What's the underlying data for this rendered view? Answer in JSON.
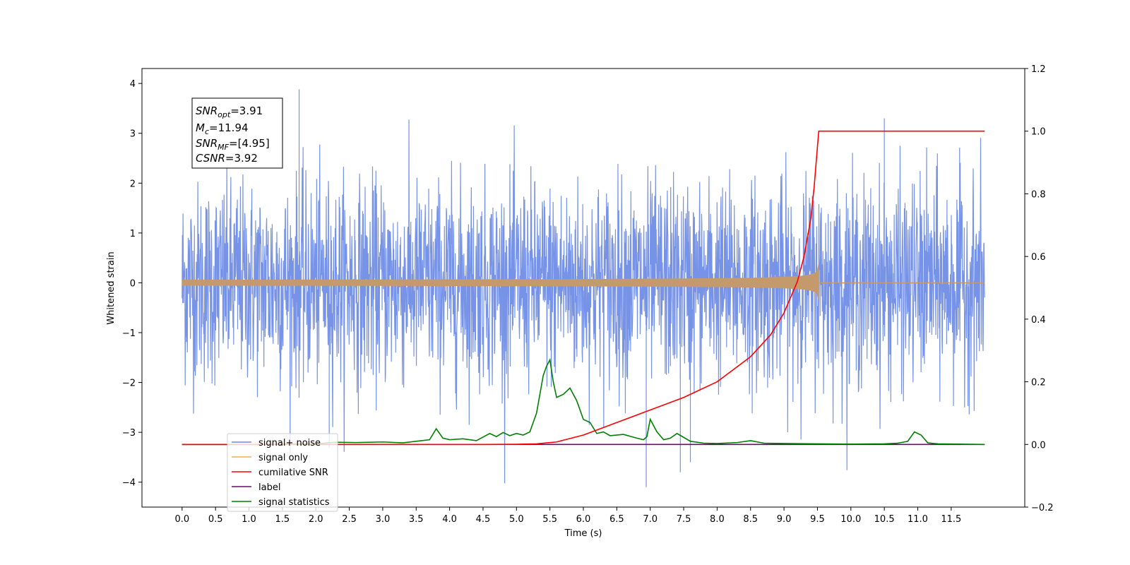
{
  "chart_data": {
    "type": "line",
    "xlabel": "Time (s)",
    "ylabel": "Whitened strain",
    "xlim": [
      -0.6,
      12.6
    ],
    "ylim": [
      -4.5,
      4.3
    ],
    "y2lim": [
      -0.2,
      1.2
    ],
    "x_ticks": [
      "0.0",
      "0.5",
      "1.0",
      "1.5",
      "2.0",
      "2.5",
      "3.0",
      "3.5",
      "4.0",
      "4.5",
      "5.0",
      "5.5",
      "6.0",
      "6.5",
      "7.0",
      "7.5",
      "8.0",
      "8.5",
      "9.0",
      "9.5",
      "10.0",
      "10.5",
      "11.0",
      "11.5"
    ],
    "y_ticks": [
      "4",
      "3",
      "2",
      "1",
      "0",
      "−1",
      "−2",
      "−3",
      "−4"
    ],
    "y2_ticks": [
      "1.2",
      "1.0",
      "0.8",
      "0.6",
      "0.4",
      "0.2",
      "0.0",
      "−0.2"
    ],
    "annotation": {
      "snr_opt_base": "SNR",
      "snr_opt_sub": "opt",
      "snr_opt_value": "=3.91",
      "mc_base": "M",
      "mc_sub": "c",
      "mc_value": "=11.94",
      "snr_mf_base": "SNR",
      "snr_mf_sub": "MF",
      "snr_mf_value": "=[4.95]",
      "csnr_base": "CSNR",
      "csnr_value": "=3.92"
    },
    "legend_position": "lower-left",
    "series": [
      {
        "name": "signal+ noise",
        "axis": "left",
        "color": "#6b8ae6",
        "x_range": [
          0,
          12
        ],
        "noise_std": 1.0,
        "y_min": -4.1,
        "y_max": 3.88,
        "peaks": [
          [
            1.75,
            3.88
          ],
          [
            6.94,
            -4.1
          ],
          [
            7.45,
            -3.8
          ],
          [
            7.6,
            -3.6
          ],
          [
            2.2,
            -3.3
          ],
          [
            10.5,
            3.3
          ]
        ]
      },
      {
        "name": "signal only",
        "axis": "left",
        "color": "#f5b041",
        "x_range": [
          0,
          9.52
        ],
        "merger_time": 9.52,
        "peak_amplitude": 0.65
      },
      {
        "name": "cumilative SNR",
        "axis": "right",
        "color": "#ff0000",
        "x": [
          0,
          4,
          4.5,
          5,
          5.3,
          5.6,
          6.0,
          6.5,
          7.0,
          7.5,
          8.0,
          8.5,
          8.8,
          9.0,
          9.2,
          9.3,
          9.4,
          9.45,
          9.5,
          9.52,
          12
        ],
        "y": [
          0,
          0,
          0,
          0.0005,
          0.002,
          0.008,
          0.03,
          0.07,
          0.11,
          0.15,
          0.2,
          0.28,
          0.35,
          0.42,
          0.52,
          0.6,
          0.72,
          0.82,
          0.95,
          1.0,
          1.0
        ]
      },
      {
        "name": "label",
        "axis": "right",
        "color": "#6a0d6a",
        "x": [
          0,
          12
        ],
        "y": [
          0,
          0
        ]
      },
      {
        "name": "signal statistics",
        "axis": "right",
        "color": "#008000",
        "x": [
          0,
          1.0,
          2.0,
          2.3,
          2.6,
          3.0,
          3.3,
          3.5,
          3.7,
          3.8,
          3.9,
          4.0,
          4.2,
          4.4,
          4.6,
          4.7,
          4.8,
          4.9,
          5.0,
          5.1,
          5.2,
          5.3,
          5.4,
          5.45,
          5.5,
          5.55,
          5.6,
          5.7,
          5.8,
          5.9,
          6.0,
          6.1,
          6.2,
          6.3,
          6.4,
          6.6,
          6.8,
          6.9,
          6.95,
          7.0,
          7.1,
          7.2,
          7.3,
          7.4,
          7.6,
          7.8,
          8.0,
          8.3,
          8.5,
          8.7,
          9.0,
          9.5,
          10.0,
          10.5,
          10.7,
          10.85,
          10.95,
          11.05,
          11.15,
          11.3,
          12
        ],
        "y": [
          0,
          0,
          0.002,
          0.007,
          0.006,
          0.008,
          0.005,
          0.01,
          0.015,
          0.05,
          0.02,
          0.015,
          0.018,
          0.012,
          0.035,
          0.025,
          0.038,
          0.028,
          0.035,
          0.03,
          0.04,
          0.1,
          0.22,
          0.25,
          0.27,
          0.2,
          0.15,
          0.16,
          0.18,
          0.14,
          0.08,
          0.07,
          0.035,
          0.04,
          0.028,
          0.032,
          0.02,
          0.015,
          0.025,
          0.08,
          0.04,
          0.015,
          0.02,
          0.035,
          0.01,
          0.004,
          0.003,
          0.006,
          0.012,
          0.004,
          0.003,
          0.002,
          0.001,
          0.002,
          0.004,
          0.01,
          0.04,
          0.03,
          0.005,
          0.002,
          0
        ]
      }
    ]
  }
}
